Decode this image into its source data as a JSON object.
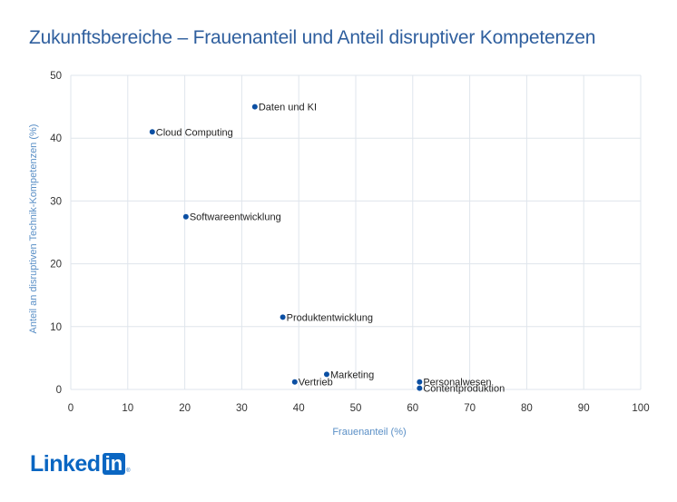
{
  "chart_data": {
    "type": "scatter",
    "title": "Zukunftsbereiche – Frauenanteil und Anteil disruptiver Kompetenzen",
    "xlabel": "Frauenanteil (%)",
    "ylabel": "Anteil an disruptiven Technik-Kompetenzen (%)",
    "xlim": [
      0,
      100
    ],
    "ylim": [
      0,
      50
    ],
    "xticks": [
      0,
      10,
      20,
      30,
      40,
      50,
      60,
      70,
      80,
      90,
      100
    ],
    "yticks": [
      0,
      10,
      20,
      30,
      40,
      50
    ],
    "grid": true,
    "point_color": "#0b4fa3",
    "points": [
      {
        "label": "Daten und KI",
        "x": 32.3,
        "y": 45.0
      },
      {
        "label": "Cloud Computing",
        "x": 14.3,
        "y": 41.0
      },
      {
        "label": "Softwareentwicklung",
        "x": 20.2,
        "y": 27.5
      },
      {
        "label": "Produktentwicklung",
        "x": 37.2,
        "y": 11.5
      },
      {
        "label": "Marketing",
        "x": 44.9,
        "y": 2.4
      },
      {
        "label": "Vertrieb",
        "x": 39.3,
        "y": 1.2
      },
      {
        "label": "Personalwesen",
        "x": 61.2,
        "y": 1.2
      },
      {
        "label": "Contentproduktion",
        "x": 61.2,
        "y": 0.2
      }
    ]
  },
  "brand": {
    "logo_word": "Linked",
    "logo_box": "in",
    "logo_mark": "®",
    "color": "#0a66c2"
  }
}
